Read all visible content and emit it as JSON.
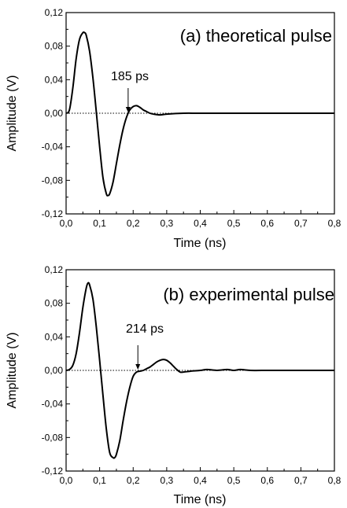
{
  "chart_data": [
    {
      "type": "line",
      "title": "(a) theoretical pulse",
      "xlabel": "Time (ns)",
      "ylabel": "Amplitude (V)",
      "xlim": [
        0.0,
        0.8
      ],
      "ylim": [
        -0.12,
        0.12
      ],
      "xticks": [
        "0,0",
        "0,1",
        "0,2",
        "0,3",
        "0,4",
        "0,5",
        "0,6",
        "0,7",
        "0,8"
      ],
      "yticks": [
        "0,12",
        "0,08",
        "0,04",
        "0,00",
        "-0,04",
        "-0,08",
        "-0,12"
      ],
      "zero_line": "dotted",
      "grid": false,
      "annotation": {
        "text": "185 ps",
        "x": 0.185,
        "y": 0.0
      },
      "series": [
        {
          "x": [
            0.0,
            0.01,
            0.02,
            0.03,
            0.04,
            0.05,
            0.055,
            0.06,
            0.07,
            0.08,
            0.09,
            0.1,
            0.11,
            0.12,
            0.125,
            0.13,
            0.14,
            0.15,
            0.16,
            0.17,
            0.18,
            0.19,
            0.2,
            0.21,
            0.22,
            0.23,
            0.24,
            0.25,
            0.26,
            0.28,
            0.3,
            0.35,
            0.4,
            0.5,
            0.6,
            0.7,
            0.8
          ],
          "y": [
            0.0,
            0.004,
            0.03,
            0.065,
            0.088,
            0.096,
            0.096,
            0.093,
            0.074,
            0.042,
            0.002,
            -0.04,
            -0.077,
            -0.096,
            -0.098,
            -0.096,
            -0.082,
            -0.06,
            -0.038,
            -0.019,
            -0.005,
            0.004,
            0.008,
            0.009,
            0.007,
            0.004,
            0.002,
            0.0,
            -0.001,
            -0.002,
            -0.001,
            0.0,
            0.0,
            0.0,
            0.0,
            0.0,
            0.0
          ]
        }
      ]
    },
    {
      "type": "line",
      "title": "(b) experimental pulse",
      "xlabel": "Time (ns)",
      "ylabel": "Amplitude (V)",
      "xlim": [
        0.0,
        0.8
      ],
      "ylim": [
        -0.12,
        0.12
      ],
      "xticks": [
        "0,0",
        "0,1",
        "0,2",
        "0,3",
        "0,4",
        "0,5",
        "0,6",
        "0,7",
        "0,8"
      ],
      "yticks": [
        "0,12",
        "0,08",
        "0,04",
        "0,00",
        "-0,04",
        "-0,08",
        "-0,12"
      ],
      "zero_line": "dotted",
      "grid": false,
      "annotation": {
        "text": "214 ps",
        "x": 0.214,
        "y": 0.0
      },
      "series": [
        {
          "x": [
            0.0,
            0.01,
            0.02,
            0.03,
            0.04,
            0.05,
            0.06,
            0.065,
            0.07,
            0.08,
            0.09,
            0.1,
            0.11,
            0.12,
            0.13,
            0.14,
            0.145,
            0.15,
            0.16,
            0.17,
            0.18,
            0.19,
            0.2,
            0.21,
            0.22,
            0.23,
            0.24,
            0.25,
            0.26,
            0.27,
            0.28,
            0.29,
            0.3,
            0.31,
            0.32,
            0.33,
            0.34,
            0.35,
            0.37,
            0.4,
            0.42,
            0.45,
            0.48,
            0.5,
            0.52,
            0.55,
            0.6,
            0.65,
            0.7,
            0.75,
            0.8
          ],
          "y": [
            0.0,
            0.001,
            0.006,
            0.02,
            0.045,
            0.075,
            0.098,
            0.104,
            0.102,
            0.085,
            0.052,
            0.012,
            -0.03,
            -0.07,
            -0.098,
            -0.104,
            -0.104,
            -0.1,
            -0.084,
            -0.06,
            -0.038,
            -0.02,
            -0.007,
            -0.002,
            -0.001,
            0.0,
            0.002,
            0.004,
            0.007,
            0.01,
            0.012,
            0.013,
            0.012,
            0.009,
            0.005,
            0.001,
            -0.002,
            -0.002,
            -0.001,
            0.0,
            0.001,
            0.0,
            0.001,
            0.0,
            0.001,
            0.0,
            0.0,
            0.0,
            0.0,
            0.0,
            0.0
          ]
        }
      ]
    }
  ]
}
